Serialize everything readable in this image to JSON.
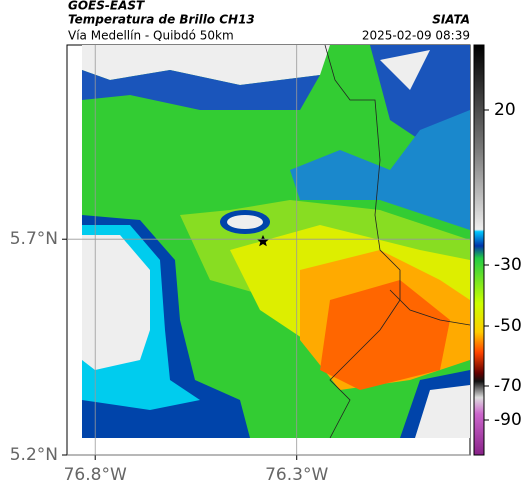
{
  "header": {
    "source": "GOES-EAST",
    "product": "Temperatura de Brillo CH13",
    "route": "Vía Medellín - Quibdó 50km",
    "agency": "SIATA",
    "timestamp": "2025-02-09 08:39"
  },
  "map": {
    "xlim": [
      -76.87,
      -75.87
    ],
    "ylim": [
      5.2,
      6.15
    ],
    "xticks": [
      {
        "value": -76.8,
        "label": "76.8°W"
      },
      {
        "value": -76.3,
        "label": "76.3°W"
      }
    ],
    "yticks": [
      {
        "value": 5.7,
        "label": "5.7°N"
      },
      {
        "value": 5.2,
        "label": "5.2°N"
      }
    ],
    "grid": true
  },
  "colorbar": {
    "ticks": [
      20,
      -30,
      -50,
      -70,
      -90
    ]
  }
}
